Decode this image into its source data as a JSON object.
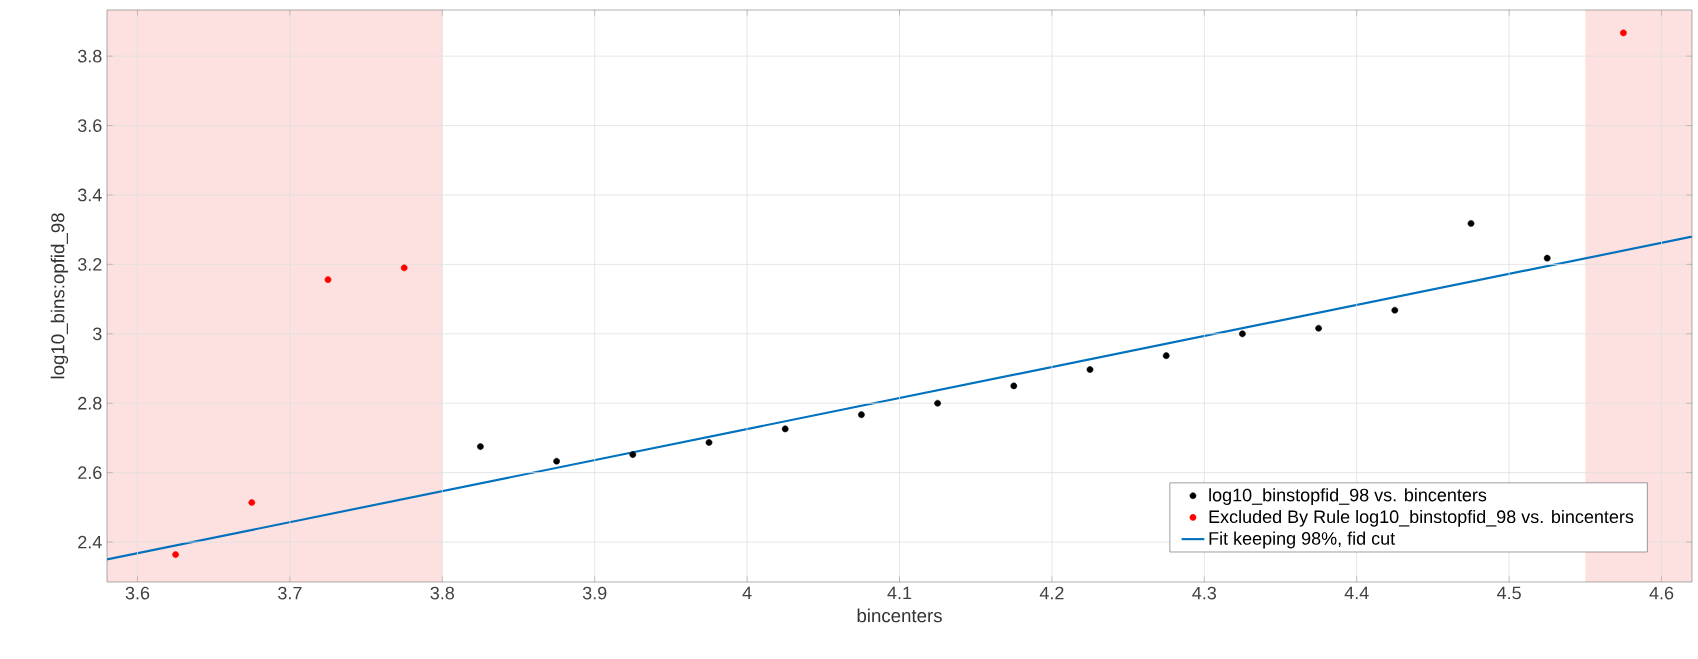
{
  "chart_data": {
    "type": "scatter",
    "xlabel": "bincenters",
    "ylabel": "log10_bins:opfid_98",
    "xlim": [
      3.58,
      4.62
    ],
    "ylim": [
      2.285,
      3.933
    ],
    "xticks": [
      3.6,
      3.7,
      3.8,
      3.9,
      4,
      4.1,
      4.2,
      4.3,
      4.4,
      4.5,
      4.6
    ],
    "yticks": [
      2.4,
      2.6,
      2.8,
      3,
      3.2,
      3.4,
      3.6,
      3.8
    ],
    "grid": true,
    "legend": "bottom right",
    "bands": [
      {
        "axis": "x",
        "from": 3.58,
        "to": 3.8,
        "color": "#fde0e0"
      },
      {
        "axis": "x",
        "from": 4.55,
        "to": 4.62,
        "color": "#fde0e0"
      }
    ],
    "series": [
      {
        "name": "log10_binstopfid_98 vs. bincenters",
        "marker": "circle",
        "color": "#000000",
        "x": [
          3.825,
          3.875,
          3.925,
          3.975,
          4.025,
          4.075,
          4.125,
          4.175,
          4.225,
          4.275,
          4.325,
          4.375,
          4.425,
          4.475,
          4.525
        ],
        "values": [
          2.675,
          2.633,
          2.652,
          2.687,
          2.726,
          2.767,
          2.8,
          2.85,
          2.897,
          2.937,
          3.0,
          3.016,
          3.068,
          3.318,
          3.218
        ]
      },
      {
        "name": "Excluded By Rule log10_binstopfid_98 vs. bincenters",
        "marker": "circle",
        "color": "#ff0000",
        "x": [
          3.625,
          3.675,
          3.725,
          3.775,
          4.575
        ],
        "values": [
          2.364,
          2.514,
          3.156,
          3.19,
          3.867
        ]
      },
      {
        "name": "Fit keeping 98%, fid cut",
        "type": "line",
        "marker": "none",
        "color": "#0072bd",
        "x": [
          3.58,
          4.62
        ],
        "values": [
          2.35,
          3.28
        ]
      }
    ]
  }
}
